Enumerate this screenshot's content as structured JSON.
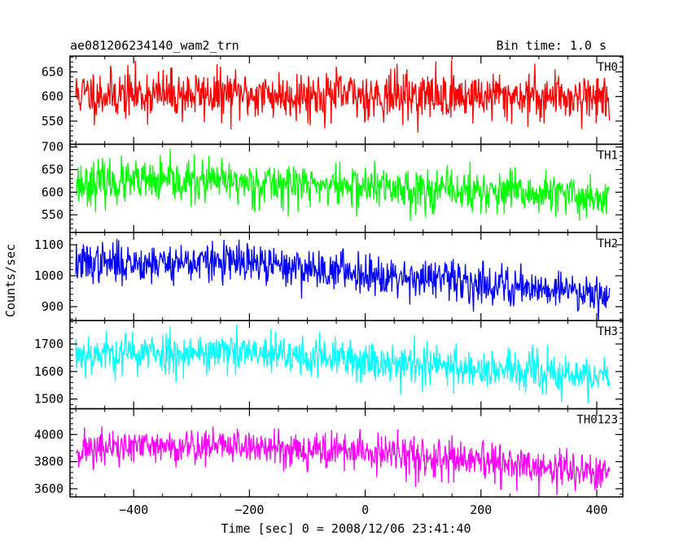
{
  "header": {
    "left": "ae081206234140_wam2_trn",
    "right": "Bin time: 1.0 s"
  },
  "chart_data": {
    "type": "line",
    "xlabel": "Time [sec] 0 = 2008/12/06 23:41:40",
    "ylabel": "Counts/sec",
    "xlim": [
      -510,
      445
    ],
    "x_ticks": [
      -400,
      -200,
      0,
      200,
      400
    ],
    "x_range_data": [
      -500,
      422
    ],
    "bin_time_s": 1.0,
    "panels": [
      {
        "name": "TH0",
        "color": "#ff0000",
        "ylim": [
          503,
          682
        ],
        "yticks": [
          550,
          600,
          650
        ],
        "trend": [
          [
            -500,
            605
          ],
          [
            422,
            600
          ]
        ],
        "noise_sd": 25,
        "seed": 11
      },
      {
        "name": "TH1",
        "color": "#00ff00",
        "ylim": [
          511,
          706
        ],
        "yticks": [
          550,
          600,
          650,
          700
        ],
        "trend": [
          [
            -500,
            620
          ],
          [
            -250,
            623
          ],
          [
            0,
            612
          ],
          [
            422,
            588
          ]
        ],
        "noise_sd": 24,
        "seed": 23
      },
      {
        "name": "TH2",
        "color": "#0000ff",
        "ylim": [
          855,
          1140
        ],
        "yticks": [
          900,
          1000,
          1100
        ],
        "trend": [
          [
            -500,
            1040
          ],
          [
            -250,
            1045
          ],
          [
            0,
            1010
          ],
          [
            200,
            975
          ],
          [
            422,
            945
          ]
        ],
        "noise_sd": 32,
        "seed": 37
      },
      {
        "name": "TH3",
        "color": "#00ffff",
        "ylim": [
          1465,
          1785
        ],
        "yticks": [
          1500,
          1600,
          1700
        ],
        "trend": [
          [
            -500,
            1665
          ],
          [
            -250,
            1670
          ],
          [
            0,
            1640
          ],
          [
            200,
            1610
          ],
          [
            422,
            1575
          ]
        ],
        "noise_sd": 38,
        "seed": 53
      },
      {
        "name": "TH0123",
        "color": "#ff00ff",
        "ylim": [
          3540,
          4190
        ],
        "yticks": [
          3600,
          3800,
          4000
        ],
        "trend": [
          [
            -500,
            3890
          ],
          [
            -250,
            3920
          ],
          [
            0,
            3870
          ],
          [
            200,
            3790
          ],
          [
            422,
            3710
          ]
        ],
        "noise_sd": 70,
        "seed": 71
      }
    ]
  }
}
